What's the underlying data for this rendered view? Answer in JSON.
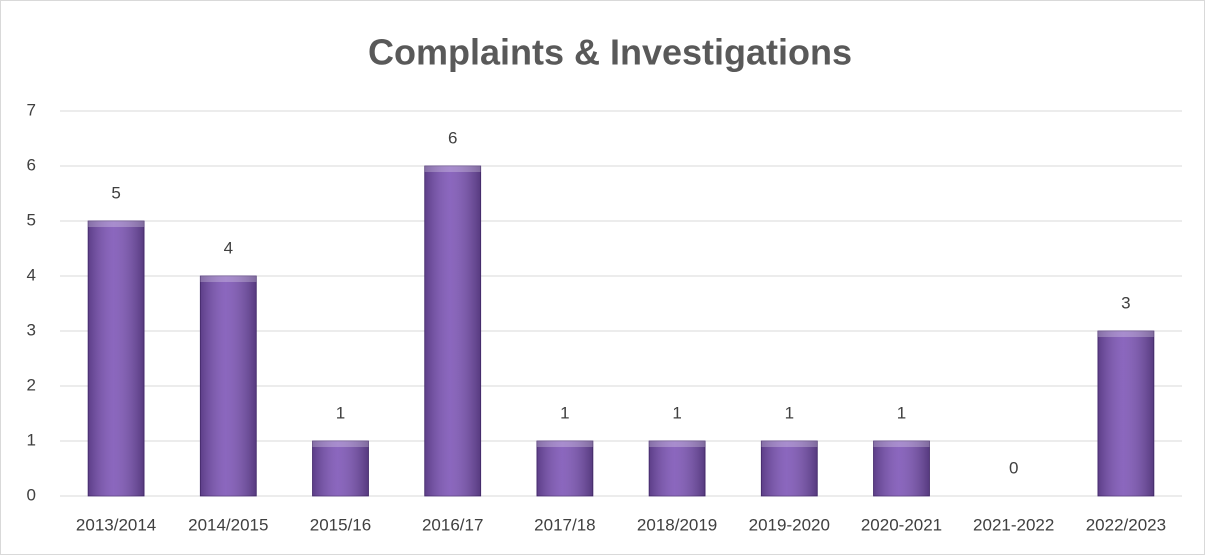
{
  "chart_data": {
    "type": "bar",
    "title": "Complaints & Investigations",
    "categories": [
      "2013/2014",
      "2014/2015",
      "2015/16",
      "2016/17",
      "2017/18",
      "2018/2019",
      "2019-2020",
      "2020-2021",
      "2021-2022",
      "2022/2023"
    ],
    "values": [
      5,
      4,
      1,
      6,
      1,
      1,
      1,
      1,
      0,
      3
    ],
    "color": "#7b52b5",
    "ylim": [
      0,
      7
    ],
    "yticks": [
      0,
      1,
      2,
      3,
      4,
      5,
      6,
      7
    ],
    "grid": true
  }
}
